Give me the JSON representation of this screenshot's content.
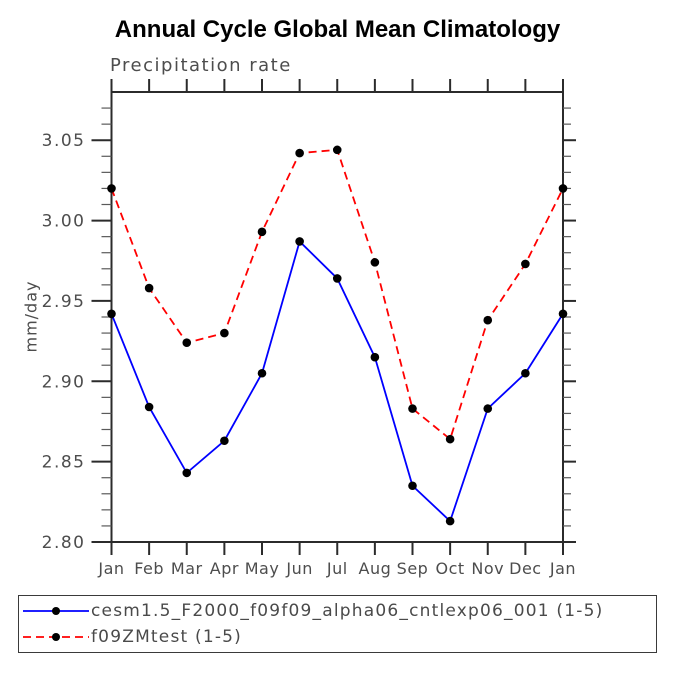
{
  "page": {
    "background": "#ffffff"
  },
  "chart_data": {
    "type": "line",
    "title": "Annual Cycle Global Mean Climatology",
    "subtitle": "Precipitation rate",
    "ylabel": "mm/day",
    "categories": [
      "Jan",
      "Feb",
      "Mar",
      "Apr",
      "May",
      "Jun",
      "Jul",
      "Aug",
      "Sep",
      "Oct",
      "Nov",
      "Dec",
      "Jan"
    ],
    "ylim": [
      2.8,
      3.08
    ],
    "yticks": [
      2.8,
      2.85,
      2.9,
      2.95,
      3.0,
      3.05
    ],
    "ytick_labels": [
      "2.80",
      "2.85",
      "2.90",
      "2.95",
      "3.00",
      "3.05"
    ],
    "minor_tick_step": 0.01,
    "grid": false,
    "legend_position": "bottom",
    "axis_color": "#2b2b2b",
    "tick_label_color": "#4d4d4d",
    "series": [
      {
        "name": "cesm1.5_F2000_f09f09_alpha06_cntlexp06_001 (1-5)",
        "color": "#0000ff",
        "line_style": "solid",
        "marker": "filled-circle",
        "marker_color": "#000000",
        "values": [
          2.942,
          2.884,
          2.843,
          2.863,
          2.905,
          2.987,
          2.964,
          2.915,
          2.835,
          2.813,
          2.883,
          2.905,
          2.942
        ]
      },
      {
        "name": "f09ZMtest (1-5)",
        "color": "#ff0000",
        "line_style": "dashed",
        "marker": "filled-circle",
        "marker_color": "#000000",
        "values": [
          3.02,
          2.958,
          2.924,
          2.93,
          2.993,
          3.042,
          3.044,
          2.974,
          2.883,
          2.864,
          2.938,
          2.973,
          3.02
        ]
      }
    ]
  }
}
